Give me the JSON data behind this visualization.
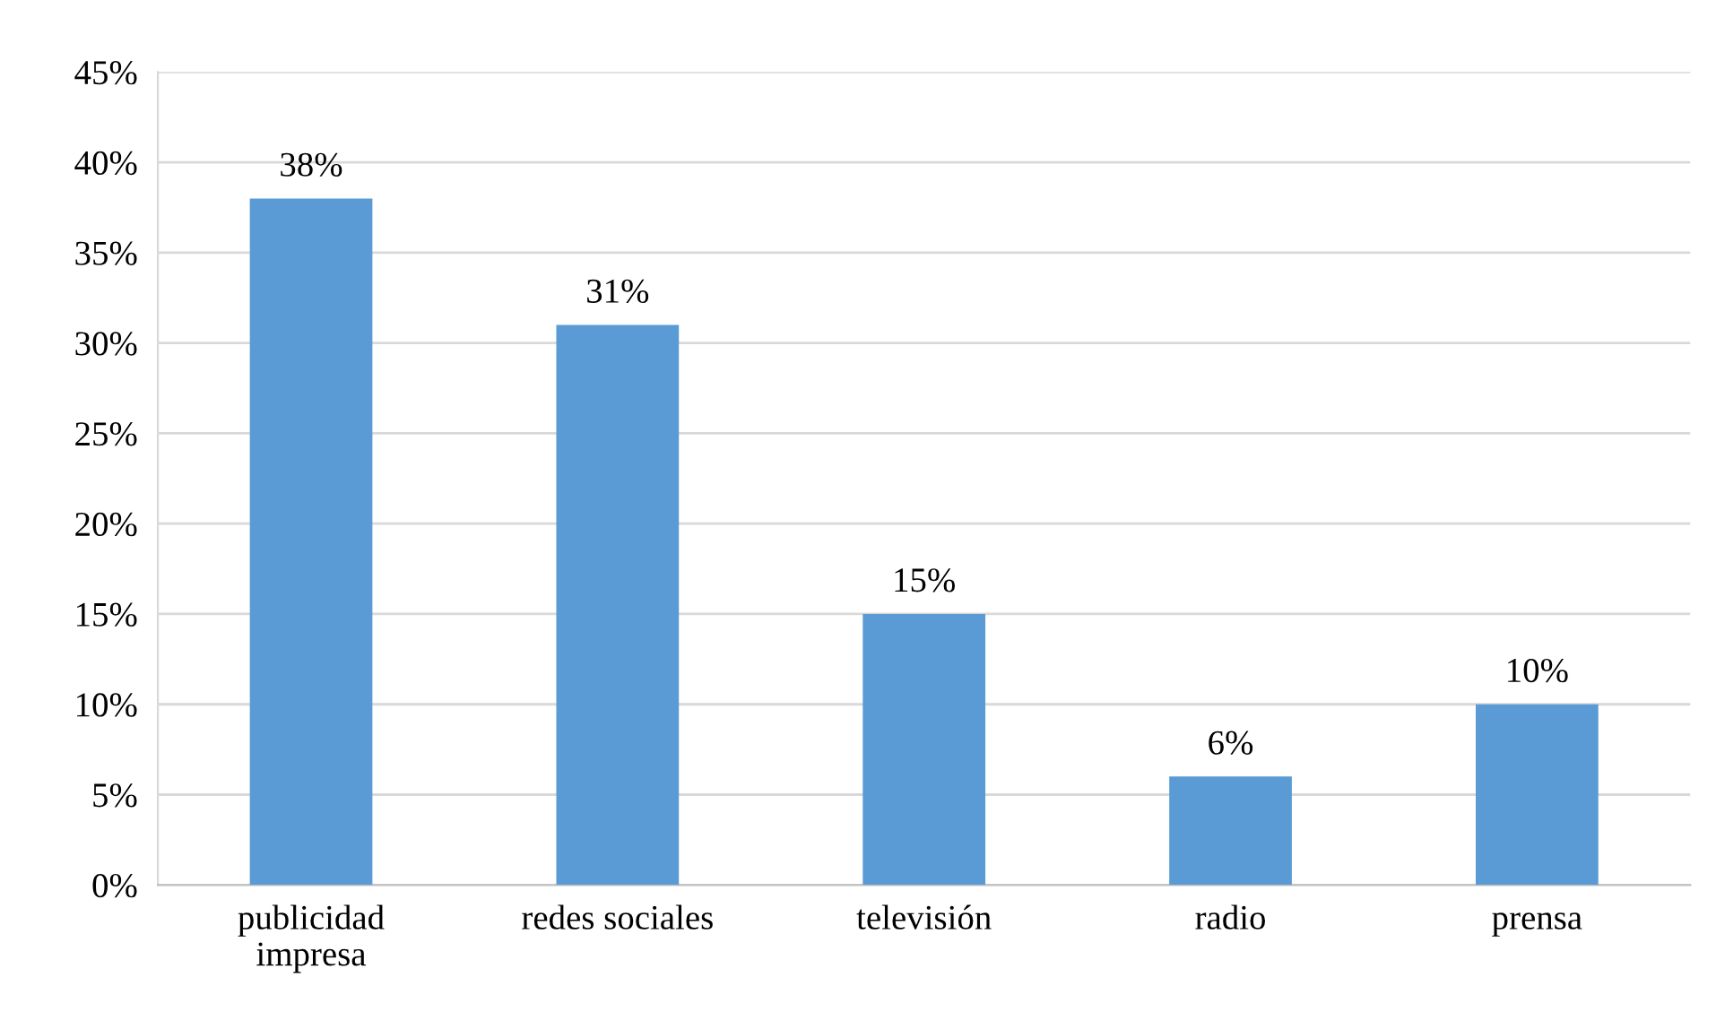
{
  "chart_data": {
    "type": "bar",
    "categories": [
      "publicidad\nimpresa",
      "redes sociales",
      "televisión",
      "radio",
      "prensa"
    ],
    "values": [
      38,
      31,
      15,
      6,
      10
    ],
    "value_labels": [
      "38%",
      "31%",
      "15%",
      "6%",
      "10%"
    ],
    "color": "#5b9bd5",
    "ylim": [
      0,
      45
    ],
    "yticks": [
      {
        "value": 0,
        "label": "0%"
      },
      {
        "value": 5,
        "label": "5%"
      },
      {
        "value": 10,
        "label": "10%"
      },
      {
        "value": 15,
        "label": "15%"
      },
      {
        "value": 20,
        "label": "20%"
      },
      {
        "value": 25,
        "label": "25%"
      },
      {
        "value": 30,
        "label": "30%"
      },
      {
        "value": 35,
        "label": "35%"
      },
      {
        "value": 40,
        "label": "40%"
      },
      {
        "value": 45,
        "label": "45%"
      }
    ],
    "grid": "y",
    "legend": false
  }
}
